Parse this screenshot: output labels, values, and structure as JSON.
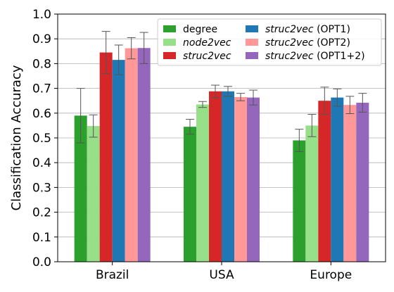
{
  "chart_data": {
    "type": "bar",
    "title": "",
    "xlabel": "",
    "ylabel": "Classification Accuracy",
    "ylim": [
      0.0,
      1.0
    ],
    "yticks": [
      "0.0",
      "0.1",
      "0.2",
      "0.3",
      "0.4",
      "0.5",
      "0.6",
      "0.7",
      "0.8",
      "0.9",
      "1.0"
    ],
    "grid": "horizontal",
    "legend_position": "top-right",
    "categories": [
      "Brazil",
      "USA",
      "Europe"
    ],
    "series": [
      {
        "name": "degree",
        "name_italic": "",
        "name_suffix": "",
        "color": "#2ca02c",
        "values": [
          0.59,
          0.545,
          0.49
        ],
        "errors": [
          0.11,
          0.03,
          0.045
        ]
      },
      {
        "name": "node2vec",
        "name_italic": "node2vec",
        "name_suffix": "",
        "color": "#98df8a",
        "values": [
          0.548,
          0.635,
          0.55
        ],
        "errors": [
          0.045,
          0.012,
          0.045
        ]
      },
      {
        "name": "struc2vec",
        "name_italic": "struc2vec",
        "name_suffix": "",
        "color": "#d62728",
        "values": [
          0.845,
          0.688,
          0.65
        ],
        "errors": [
          0.085,
          0.025,
          0.055
        ]
      },
      {
        "name": "struc2vec (OPT1)",
        "name_italic": "struc2vec",
        "name_suffix": " (OPT1)",
        "color": "#1f77b4",
        "values": [
          0.815,
          0.688,
          0.663
        ],
        "errors": [
          0.06,
          0.02,
          0.035
        ]
      },
      {
        "name": "struc2vec (OPT2)",
        "name_italic": "struc2vec",
        "name_suffix": " (OPT2)",
        "color": "#ff9896",
        "values": [
          0.862,
          0.665,
          0.633
        ],
        "errors": [
          0.043,
          0.015,
          0.035
        ]
      },
      {
        "name": "struc2vec (OPT1+2)",
        "name_italic": "struc2vec",
        "name_suffix": " (OPT1+2)",
        "color": "#9467bd",
        "values": [
          0.863,
          0.663,
          0.642
        ],
        "errors": [
          0.063,
          0.03,
          0.038
        ]
      }
    ]
  }
}
